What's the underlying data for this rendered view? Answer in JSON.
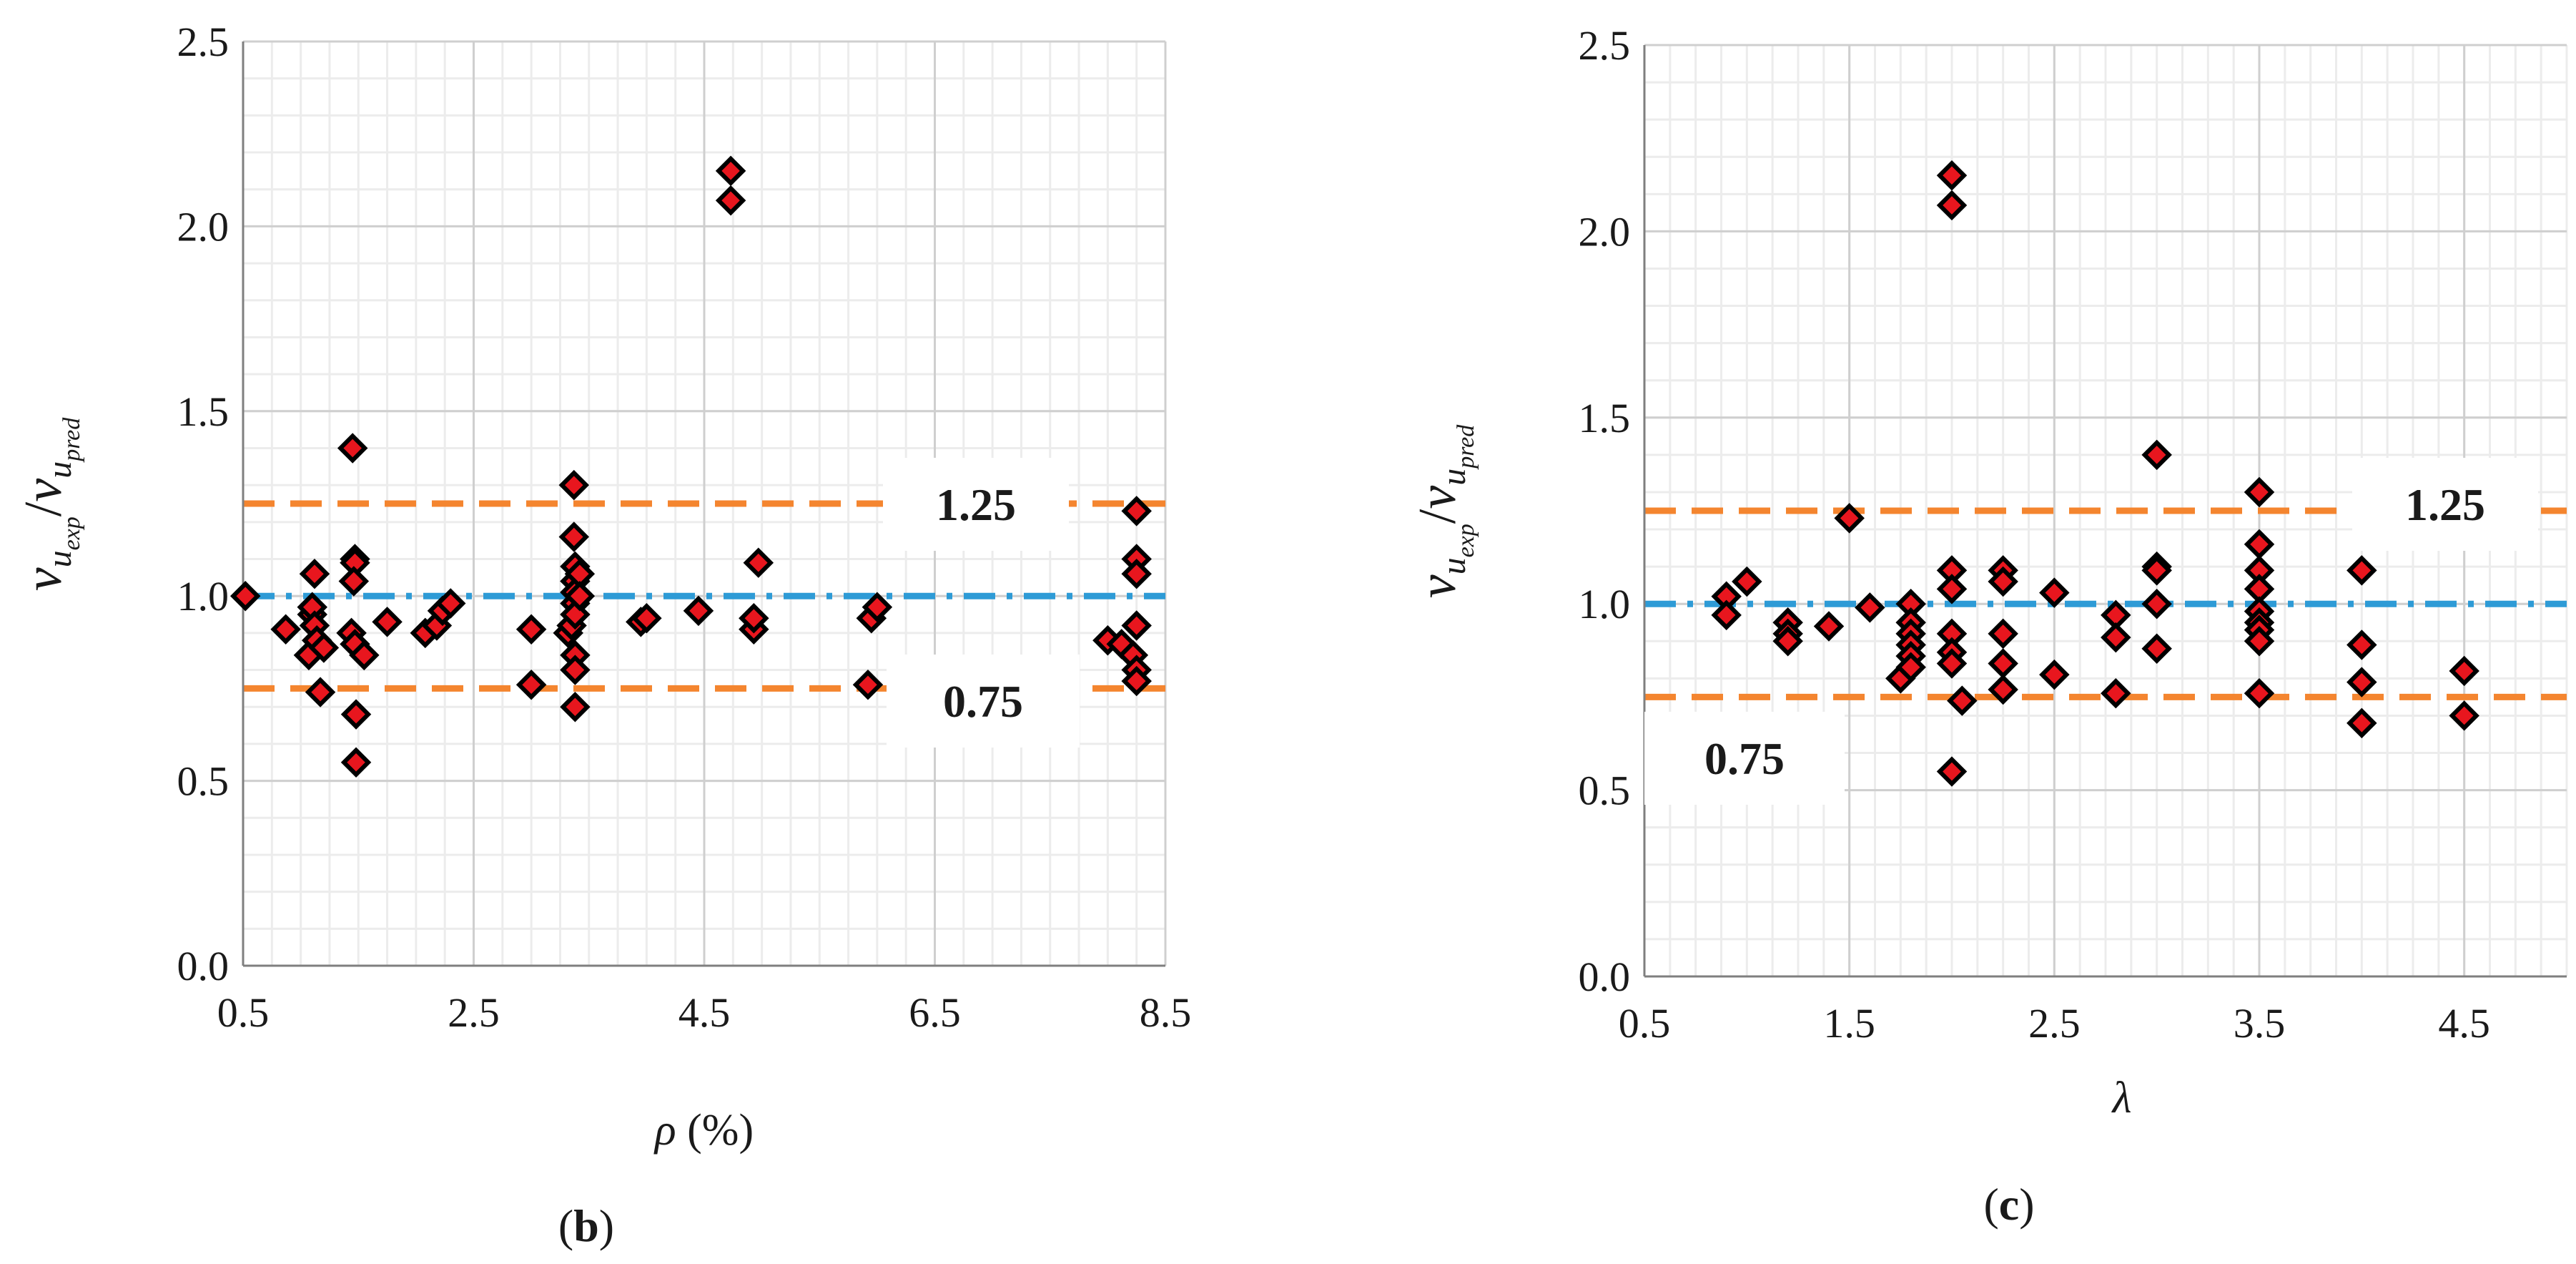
{
  "chart_data": [
    {
      "type": "scatter",
      "panel_label": "b",
      "xlabel_symbol": "ρ",
      "xlabel_unit": " (%)",
      "ylabel_main": "v",
      "ylabel_sub1": "u",
      "ylabel_sub2": "exp",
      "ylabel_sub3": "pred",
      "xlim": [
        0.5,
        8.5
      ],
      "ylim": [
        0.0,
        2.5
      ],
      "xticks": [
        0.5,
        2.5,
        4.5,
        6.5,
        8.5
      ],
      "xtick_labels": [
        "0.5",
        "2.5",
        "4.5",
        "6.5",
        "8.5"
      ],
      "yticks": [
        0.0,
        0.5,
        1.0,
        1.5,
        2.0,
        2.5
      ],
      "ytick_labels": [
        "0.0",
        "0.5",
        "1.0",
        "1.5",
        "2.0",
        "2.5"
      ],
      "reference_lines": [
        {
          "y": 1.25,
          "label": "1.25",
          "color": "#F4852F",
          "style": "dashed"
        },
        {
          "y": 1.0,
          "label": "",
          "color": "#2E9BD6",
          "style": "dash-dot"
        },
        {
          "y": 0.75,
          "label": "0.75",
          "color": "#F4852F",
          "style": "dashed"
        }
      ],
      "points": [
        [
          0.52,
          1.0
        ],
        [
          0.87,
          0.91
        ],
        [
          1.07,
          0.84
        ],
        [
          1.1,
          0.95
        ],
        [
          1.1,
          0.97
        ],
        [
          1.12,
          1.06
        ],
        [
          1.12,
          0.92
        ],
        [
          1.14,
          0.88
        ],
        [
          1.17,
          0.74
        ],
        [
          1.2,
          0.86
        ],
        [
          1.45,
          1.4
        ],
        [
          1.47,
          1.1
        ],
        [
          1.47,
          1.09
        ],
        [
          1.46,
          1.04
        ],
        [
          1.44,
          0.9
        ],
        [
          1.47,
          0.87
        ],
        [
          1.48,
          0.68
        ],
        [
          1.48,
          0.55
        ],
        [
          1.55,
          0.84
        ],
        [
          1.75,
          0.93
        ],
        [
          2.08,
          0.9
        ],
        [
          2.18,
          0.92
        ],
        [
          2.23,
          0.96
        ],
        [
          2.3,
          0.98
        ],
        [
          3.0,
          0.91
        ],
        [
          3.0,
          0.76
        ],
        [
          3.32,
          0.9
        ],
        [
          3.35,
          0.92
        ],
        [
          3.37,
          1.3
        ],
        [
          3.37,
          1.16
        ],
        [
          3.38,
          1.08
        ],
        [
          3.38,
          1.04
        ],
        [
          3.38,
          1.01
        ],
        [
          3.38,
          0.98
        ],
        [
          3.38,
          0.95
        ],
        [
          3.38,
          0.84
        ],
        [
          3.38,
          0.8
        ],
        [
          3.38,
          0.7
        ],
        [
          3.42,
          1.06
        ],
        [
          3.42,
          1.0
        ],
        [
          3.95,
          0.93
        ],
        [
          4.0,
          0.94
        ],
        [
          4.45,
          0.96
        ],
        [
          4.73,
          2.15
        ],
        [
          4.73,
          2.07
        ],
        [
          4.93,
          0.91
        ],
        [
          4.93,
          0.94
        ],
        [
          4.97,
          1.09
        ],
        [
          5.92,
          0.76
        ],
        [
          5.95,
          0.94
        ],
        [
          6.0,
          0.97
        ],
        [
          8.0,
          0.88
        ],
        [
          8.12,
          0.87
        ],
        [
          8.25,
          1.23
        ],
        [
          8.25,
          1.1
        ],
        [
          8.25,
          1.06
        ],
        [
          8.25,
          0.92
        ],
        [
          8.22,
          0.84
        ],
        [
          8.25,
          0.8
        ],
        [
          8.25,
          0.77
        ]
      ]
    },
    {
      "type": "scatter",
      "panel_label": "c",
      "xlabel_symbol": "λ",
      "xlabel_unit": "",
      "ylabel_main": "v",
      "ylabel_sub1": "u",
      "ylabel_sub2": "exp",
      "ylabel_sub3": "pred",
      "xlim": [
        0.5,
        5.0
      ],
      "ylim": [
        0.0,
        2.5
      ],
      "xticks": [
        0.5,
        1.5,
        2.5,
        3.5,
        4.5
      ],
      "xtick_labels": [
        "0.5",
        "1.5",
        "2.5",
        "3.5",
        "4.5"
      ],
      "yticks": [
        0.0,
        0.5,
        1.0,
        1.5,
        2.0,
        2.5
      ],
      "ytick_labels": [
        "0.0",
        "0.5",
        "1.0",
        "1.5",
        "2.0",
        "2.5"
      ],
      "reference_lines": [
        {
          "y": 1.25,
          "label": "1.25",
          "color": "#F4852F",
          "style": "dashed"
        },
        {
          "y": 1.0,
          "label": "",
          "color": "#2E9BD6",
          "style": "dash-dot"
        },
        {
          "y": 0.75,
          "label": "0.75",
          "color": "#F4852F",
          "style": "dashed"
        }
      ],
      "points": [
        [
          0.9,
          1.02
        ],
        [
          0.9,
          0.97
        ],
        [
          1.0,
          1.06
        ],
        [
          1.2,
          0.95
        ],
        [
          1.2,
          0.92
        ],
        [
          1.2,
          0.9
        ],
        [
          1.4,
          0.94
        ],
        [
          1.5,
          1.23
        ],
        [
          1.6,
          0.99
        ],
        [
          1.75,
          0.8
        ],
        [
          1.8,
          1.0
        ],
        [
          1.8,
          0.95
        ],
        [
          1.8,
          0.92
        ],
        [
          1.8,
          0.89
        ],
        [
          1.8,
          0.86
        ],
        [
          1.8,
          0.83
        ],
        [
          2.0,
          2.15
        ],
        [
          2.0,
          2.07
        ],
        [
          2.0,
          1.09
        ],
        [
          2.0,
          1.04
        ],
        [
          2.0,
          0.92
        ],
        [
          2.0,
          0.87
        ],
        [
          2.0,
          0.84
        ],
        [
          2.0,
          0.55
        ],
        [
          2.05,
          0.74
        ],
        [
          2.25,
          1.09
        ],
        [
          2.25,
          1.06
        ],
        [
          2.25,
          0.92
        ],
        [
          2.25,
          0.84
        ],
        [
          2.25,
          0.77
        ],
        [
          2.5,
          1.03
        ],
        [
          2.5,
          0.81
        ],
        [
          2.8,
          0.97
        ],
        [
          2.8,
          0.91
        ],
        [
          2.8,
          0.76
        ],
        [
          3.0,
          1.4
        ],
        [
          3.0,
          1.1
        ],
        [
          3.0,
          1.09
        ],
        [
          3.0,
          1.0
        ],
        [
          3.0,
          0.88
        ],
        [
          3.5,
          1.3
        ],
        [
          3.5,
          1.16
        ],
        [
          3.5,
          1.09
        ],
        [
          3.5,
          1.04
        ],
        [
          3.5,
          0.98
        ],
        [
          3.5,
          0.95
        ],
        [
          3.5,
          0.93
        ],
        [
          3.5,
          0.9
        ],
        [
          3.5,
          0.76
        ],
        [
          4.0,
          1.09
        ],
        [
          4.0,
          0.89
        ],
        [
          4.0,
          0.79
        ],
        [
          4.0,
          0.68
        ],
        [
          4.5,
          0.82
        ],
        [
          4.5,
          0.7
        ]
      ]
    }
  ],
  "colors": {
    "marker_fill": "#E8161E",
    "marker_stroke": "#000000",
    "grid_major": "#cfcfcf",
    "grid_minor": "#ececec",
    "axis": "#7f7f7f",
    "ref_orange": "#F4852F",
    "ref_blue": "#2E9BD6"
  }
}
